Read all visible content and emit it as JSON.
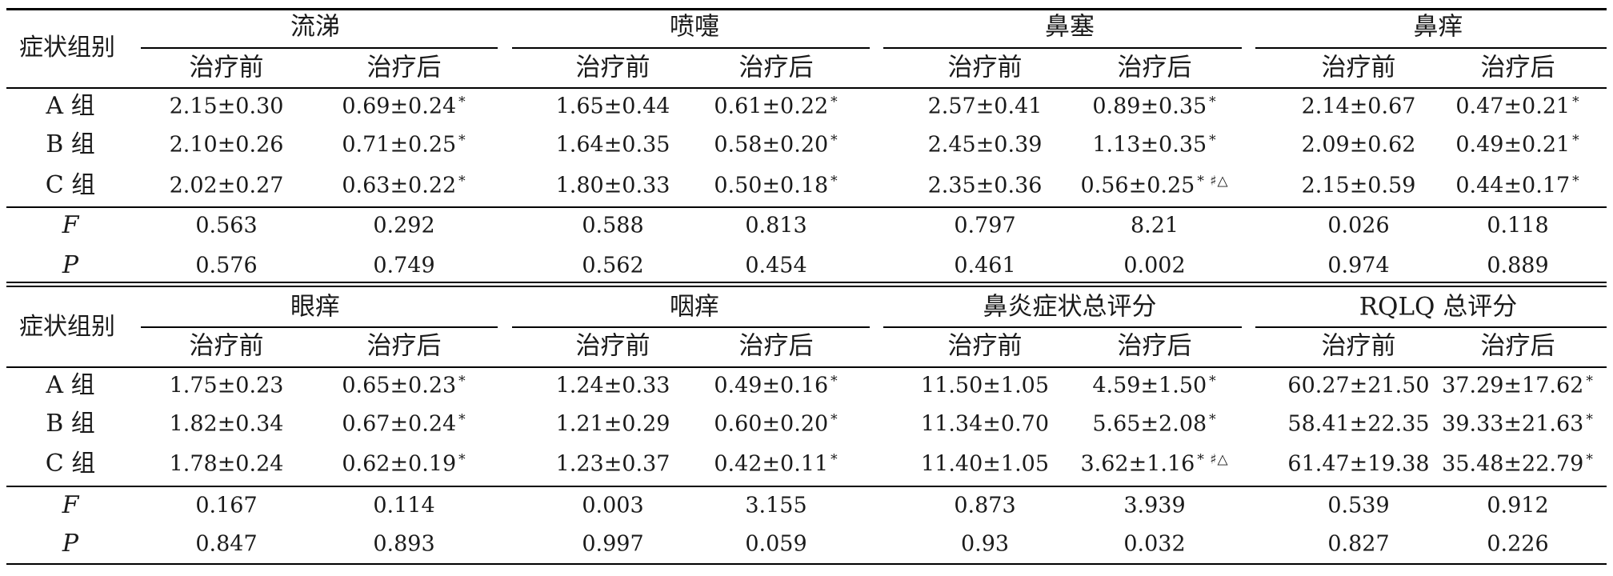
{
  "tables": [
    {
      "row_header": "症状组别",
      "groups": [
        "流涕",
        "喷嚏",
        "鼻塞",
        "鼻痒"
      ],
      "subheaders": [
        "治疗前",
        "治疗后",
        "治疗前",
        "治疗后",
        "治疗前",
        "治疗后",
        "治疗前",
        "治疗后"
      ],
      "rows": [
        {
          "label": "A 组",
          "cells": [
            "2.15±0.30",
            "0.69±0.24",
            "1.65±0.44",
            "0.61±0.22",
            "2.57±0.41",
            "0.89±0.35",
            "2.14±0.67",
            "0.47±0.21"
          ],
          "marks": [
            "",
            "*",
            "",
            "*",
            "",
            "*",
            "",
            "*"
          ]
        },
        {
          "label": "B 组",
          "cells": [
            "2.10±0.26",
            "0.71±0.25",
            "1.64±0.35",
            "0.58±0.20",
            "2.45±0.39",
            "1.13±0.35",
            "2.09±0.62",
            "0.49±0.21"
          ],
          "marks": [
            "",
            "*",
            "",
            "*",
            "",
            "*",
            "",
            "*"
          ]
        },
        {
          "label": "C 组",
          "cells": [
            "2.02±0.27",
            "0.63±0.22",
            "1.80±0.33",
            "0.50±0.18",
            "2.35±0.36",
            "0.56±0.25",
            "2.15±0.59",
            "0.44±0.17"
          ],
          "marks": [
            "",
            "*",
            "",
            "*",
            "",
            "* ♯△",
            "",
            "*"
          ]
        }
      ],
      "stats": [
        {
          "label": "F",
          "cells": [
            "0.563",
            "0.292",
            "0.588",
            "0.813",
            "0.797",
            "8.21",
            "0.026",
            "0.118"
          ]
        },
        {
          "label": "P",
          "cells": [
            "0.576",
            "0.749",
            "0.562",
            "0.454",
            "0.461",
            "0.002",
            "0.974",
            "0.889"
          ]
        }
      ]
    },
    {
      "row_header": "症状组别",
      "groups": [
        "眼痒",
        "咽痒",
        "鼻炎症状总评分",
        "RQLQ 总评分"
      ],
      "subheaders": [
        "治疗前",
        "治疗后",
        "治疗前",
        "治疗后",
        "治疗前",
        "治疗后",
        "治疗前",
        "治疗后"
      ],
      "rows": [
        {
          "label": "A 组",
          "cells": [
            "1.75±0.23",
            "0.65±0.23",
            "1.24±0.33",
            "0.49±0.16",
            "11.50±1.05",
            "4.59±1.50",
            "60.27±21.50",
            "37.29±17.62"
          ],
          "marks": [
            "",
            "*",
            "",
            "*",
            "",
            "*",
            "",
            "*"
          ]
        },
        {
          "label": "B 组",
          "cells": [
            "1.82±0.34",
            "0.67±0.24",
            "1.21±0.29",
            "0.60±0.20",
            "11.34±0.70",
            "5.65±2.08",
            "58.41±22.35",
            "39.33±21.63"
          ],
          "marks": [
            "",
            "*",
            "",
            "*",
            "",
            "*",
            "",
            "*"
          ]
        },
        {
          "label": "C 组",
          "cells": [
            "1.78±0.24",
            "0.62±0.19",
            "1.23±0.37",
            "0.42±0.11",
            "11.40±1.05",
            "3.62±1.16",
            "61.47±19.38",
            "35.48±22.79"
          ],
          "marks": [
            "",
            "*",
            "",
            "*",
            "",
            "* ♯△",
            "",
            "*"
          ]
        }
      ],
      "stats": [
        {
          "label": "F",
          "cells": [
            "0.167",
            "0.114",
            "0.003",
            "3.155",
            "0.873",
            "3.939",
            "0.539",
            "0.912"
          ]
        },
        {
          "label": "P",
          "cells": [
            "0.847",
            "0.893",
            "0.997",
            "0.059",
            "0.93",
            "0.032",
            "0.827",
            "0.226"
          ]
        }
      ]
    }
  ]
}
